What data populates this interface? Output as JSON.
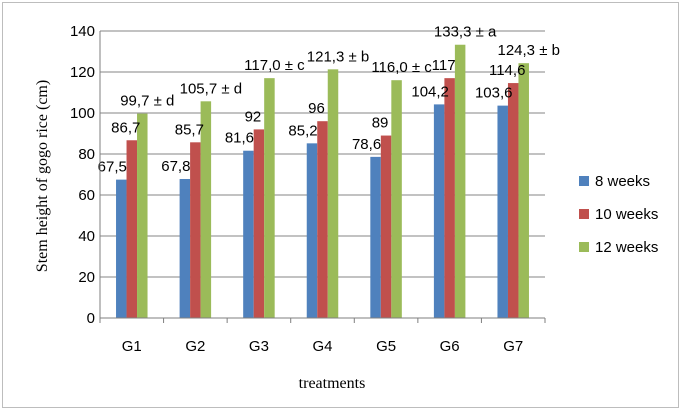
{
  "chart_data": {
    "type": "bar",
    "categories": [
      "G1",
      "G2",
      "G3",
      "G4",
      "G5",
      "G6",
      "G7"
    ],
    "series": [
      {
        "name": "8 weeks",
        "values": [
          67.5,
          67.8,
          81.6,
          85.2,
          78.6,
          104.2,
          103.6
        ],
        "labels": [
          "67,5",
          "67,8",
          "81,6",
          "85,2",
          "78,6",
          "104,2",
          "103,6"
        ],
        "color": "#4F81BD"
      },
      {
        "name": "10 weeks",
        "values": [
          86.7,
          85.7,
          92,
          96,
          89,
          117,
          114.6
        ],
        "labels": [
          "86,7",
          "85,7",
          "92",
          "96",
          "89",
          "117",
          "114,6"
        ],
        "color": "#C0504D"
      },
      {
        "name": "12 weeks",
        "values": [
          99.7,
          105.7,
          117.0,
          121.3,
          116.0,
          133.3,
          124.3
        ],
        "labels": [
          "99,7 ± d",
          "105,7 ± d",
          "117,0 ± c",
          "121,3 ± b",
          "116,0 ± c",
          "133,3 ± a",
          "124,3 ± b"
        ],
        "color": "#9BBB59"
      }
    ],
    "xlabel": "treatments",
    "ylabel": "Stem height of gogo rice (cm)",
    "ylim": [
      0,
      140
    ],
    "yticks": [
      0,
      20,
      40,
      60,
      80,
      100,
      120,
      140
    ],
    "grid": true,
    "legend": "right"
  }
}
